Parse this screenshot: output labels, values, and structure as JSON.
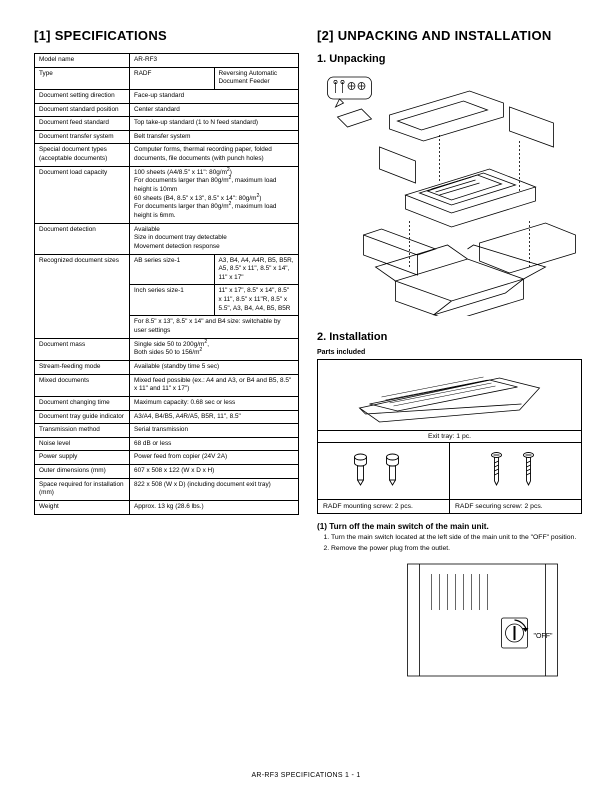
{
  "footer": "AR-RF3  SPECIFICATIONS   1 - 1",
  "left": {
    "heading": "[1]  SPECIFICATIONS",
    "rows": [
      {
        "k": "Model name",
        "v": "AR-RF3"
      },
      {
        "k": "Type",
        "v1": "RADF",
        "v2": "Reversing Automatic Document Feeder",
        "split": true
      },
      {
        "k": "Document setting direction",
        "v": "Face-up standard"
      },
      {
        "k": "Document standard position",
        "v": "Center standard"
      },
      {
        "k": "Document feed standard",
        "v": "Top take-up standard (1 to N feed standard)"
      },
      {
        "k": "Document transfer system",
        "v": "Belt transfer system"
      },
      {
        "k": "Special document types (acceptable documents)",
        "v": "Computer forms, thermal recording paper, folded documents, file documents (with punch holes)"
      },
      {
        "k": "Document load capacity",
        "v": "100 sheets (A4/8.5\" x 11\": 80g/m²)\n   For documents larger than 80g/m², maximum load height is 10mm\n60 sheets (B4, 8.5\" x 13\", 8.5\" x 14\": 80g/m²)\n   For documents larger than 80g/m², maximum load height is 6mm."
      },
      {
        "k": "Document detection",
        "v": "Available\n   Size in document tray detectable\n   Movement detection response"
      },
      {
        "k": "Recognized document sizes",
        "sub": [
          {
            "a": "AB series size-1",
            "b": "A3, B4, A4, A4R, B5, B5R, A5, 8.5\" x 11\", 8.5\" x 14\", 11\" x 17\""
          },
          {
            "a": "Inch series size-1",
            "b": "11\" x 17\", 8.5\" x 14\", 8.5\" x 11\", 8.5\" x 11\"R, 8.5\" x 5.5\", A3, B4, A4, B5, B5R"
          },
          {
            "span": "For 8.5\" x 13\", 8.5\" x 14\" and B4 size: switchable by user settings"
          }
        ]
      },
      {
        "k": "Document mass",
        "v": "Single side 50 to 200g/m²,\nBoth sides 50 to 156/m²"
      },
      {
        "k": "Stream-feeding mode",
        "v": "Available (standby time 5 sec)"
      },
      {
        "k": "Mixed documents",
        "v": "Mixed feed possible (ex.: A4 and A3, or B4 and B5, 8.5\" x 11\" and 11\" x 17\")"
      },
      {
        "k": "Document changing time",
        "v": "Maximum capacity: 0.68 sec or less"
      },
      {
        "k": "Document tray guide indicator",
        "v": "A3/A4, B4/B5, A4R/A5, B5R, 11\", 8.5\""
      },
      {
        "k": "Transmission method",
        "v": "Serial transmission"
      },
      {
        "k": "Noise level",
        "v": "68 dB or less"
      },
      {
        "k": "Power supply",
        "v": "Power feed from copier (24V 2A)"
      },
      {
        "k": "Outer dimensions (mm)",
        "v": "607 x 508 x 122 (W x D x H)"
      },
      {
        "k": "Space required for installation (mm)",
        "v": "822 x 508 (W x D) (including document exit tray)"
      },
      {
        "k": "Weight",
        "v": "Approx. 13 kg (28.6 lbs.)"
      }
    ]
  },
  "right": {
    "heading": "[2]  UNPACKING AND INSTALLATION",
    "unpacking_title": "1. Unpacking",
    "installation_title": "2. Installation",
    "parts_included_label": "Parts included",
    "exit_tray_caption": "Exit tray: 1 pc.",
    "mounting_caption": "RADF mounting screw: 2 pcs.",
    "securing_caption": "RADF securing screw: 2 pcs.",
    "step1_heading": "(1) Turn off the main switch of the main unit.",
    "steps": [
      "Turn the main switch located at the left side of the main unit to the \"OFF\" position.",
      "Remove the power plug from the outlet."
    ],
    "off_label": "\"OFF\""
  },
  "colors": {
    "line": "#000000",
    "bg": "#ffffff"
  }
}
